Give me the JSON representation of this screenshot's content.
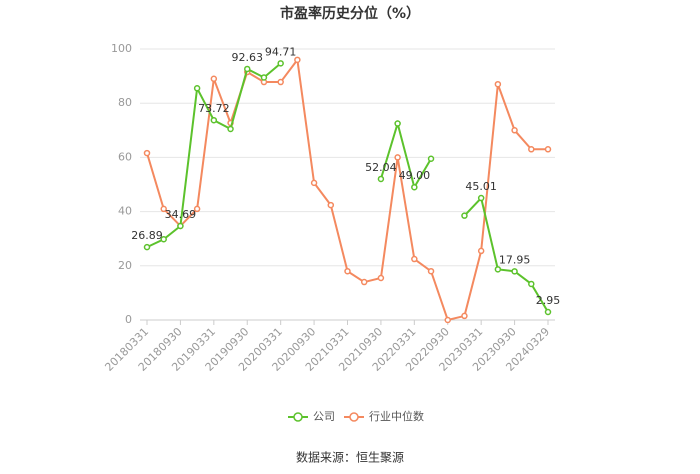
{
  "chart_data": {
    "type": "line",
    "title": "市盈率历史分位（%）",
    "categories": [
      "20180331",
      null,
      "20180930",
      null,
      "20190331",
      null,
      "20190930",
      null,
      "20200331",
      null,
      "20200930",
      null,
      "20210331",
      null,
      "20210930",
      null,
      "20220331",
      null,
      "20220930",
      null,
      "20230331",
      null,
      "20230930",
      null,
      "20240329"
    ],
    "series": [
      {
        "name": "公司",
        "color": "#5cc22c",
        "values": [
          26.89,
          29.8,
          34.69,
          85.5,
          73.72,
          70.5,
          92.63,
          89.5,
          94.71,
          null,
          null,
          null,
          null,
          null,
          52.04,
          72.5,
          49.0,
          59.5,
          null,
          38.5,
          45.01,
          18.7,
          17.95,
          13.3,
          2.95
        ],
        "value_labels": [
          "26.89",
          null,
          "34.69",
          null,
          "73.72",
          null,
          "92.63",
          null,
          "94.71",
          null,
          null,
          null,
          null,
          null,
          "52.04",
          null,
          "49.00",
          null,
          null,
          null,
          "45.01",
          null,
          "17.95",
          null,
          "2.95"
        ]
      },
      {
        "name": "行业中位数",
        "color": "#f4895f",
        "values": [
          61.6,
          41,
          34.7,
          41,
          89,
          72.7,
          91.5,
          87.8,
          87.8,
          96,
          50.6,
          42.4,
          18,
          14,
          15.5,
          60,
          22.5,
          18,
          0,
          1.5,
          25.5,
          87,
          70,
          63,
          63
        ]
      }
    ],
    "ylim": [
      0,
      100
    ],
    "yticks": [
      0,
      20,
      40,
      60,
      80,
      100
    ],
    "grid": true,
    "source": "数据来源：恒生聚源"
  }
}
